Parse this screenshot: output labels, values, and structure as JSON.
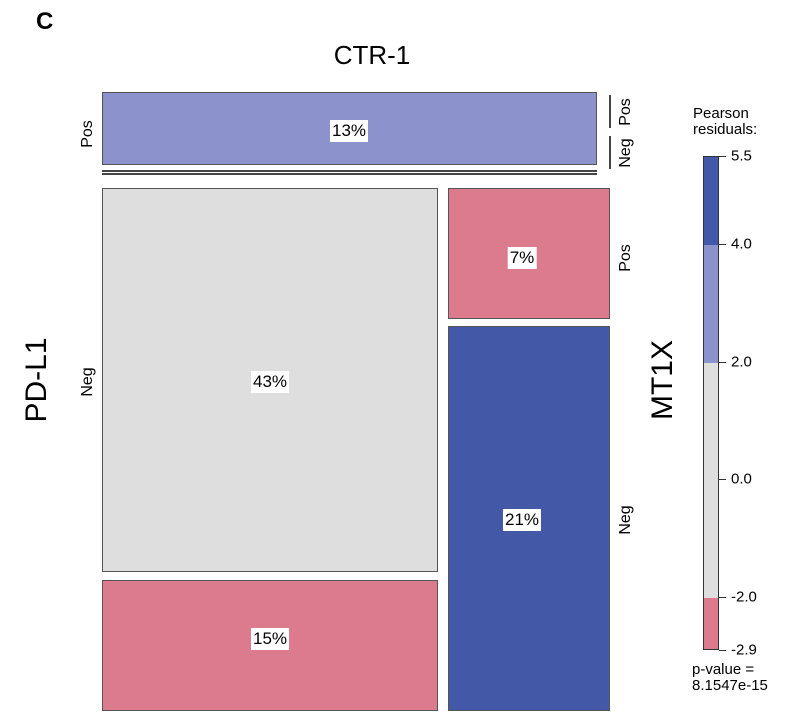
{
  "panel_letter": "C",
  "chart_data": {
    "type": "mosaic",
    "top_variable": "CTR-1",
    "left_variable": "PD-L1",
    "right_variable": "MT1X",
    "ctr1_top_label": "Pos",
    "ctr1_top_percent": "13%",
    "cells": [
      {
        "id": "neg-left-top",
        "percent": "43%",
        "residual_band": "-2.0 to 2.0",
        "color": "#dedede"
      },
      {
        "id": "neg-left-bottom",
        "percent": "15%",
        "residual_band": "-2.9 to -2.0",
        "color": "#dd7b8e"
      },
      {
        "id": "neg-right-top",
        "percent": "7%",
        "residual_band": "-2.9 to -2.0",
        "color": "#dd7b8e"
      },
      {
        "id": "neg-right-bottom",
        "percent": "21%",
        "residual_band": "4.0 to 5.5",
        "color": "#4359a8"
      }
    ],
    "top_cell_color": "#8c93cc",
    "left_labels": {
      "pos": "Pos",
      "neg": "Neg"
    },
    "right_labels": {
      "pos_top": "Pos",
      "neg_top": "Neg",
      "pos": "Pos",
      "neg": "Neg"
    },
    "legend": {
      "title_line1": "Pearson",
      "title_line2": "residuals:",
      "ticks": [
        "5.5",
        "4.0",
        "2.0",
        "0.0",
        "-2.0",
        "-2.9"
      ],
      "tick_values": [
        5.5,
        4.0,
        2.0,
        0.0,
        -2.0,
        -2.9
      ],
      "bands": [
        {
          "from": 4.0,
          "to": 5.5,
          "color": "#4359a8"
        },
        {
          "from": 2.0,
          "to": 4.0,
          "color": "#8c93cc"
        },
        {
          "from": -2.0,
          "to": 2.0,
          "color": "#dedede"
        },
        {
          "from": -2.9,
          "to": -2.0,
          "color": "#dd7b8e"
        }
      ],
      "pvalue_line1": "p-value =",
      "pvalue_line2": "8.1547e-15"
    }
  }
}
